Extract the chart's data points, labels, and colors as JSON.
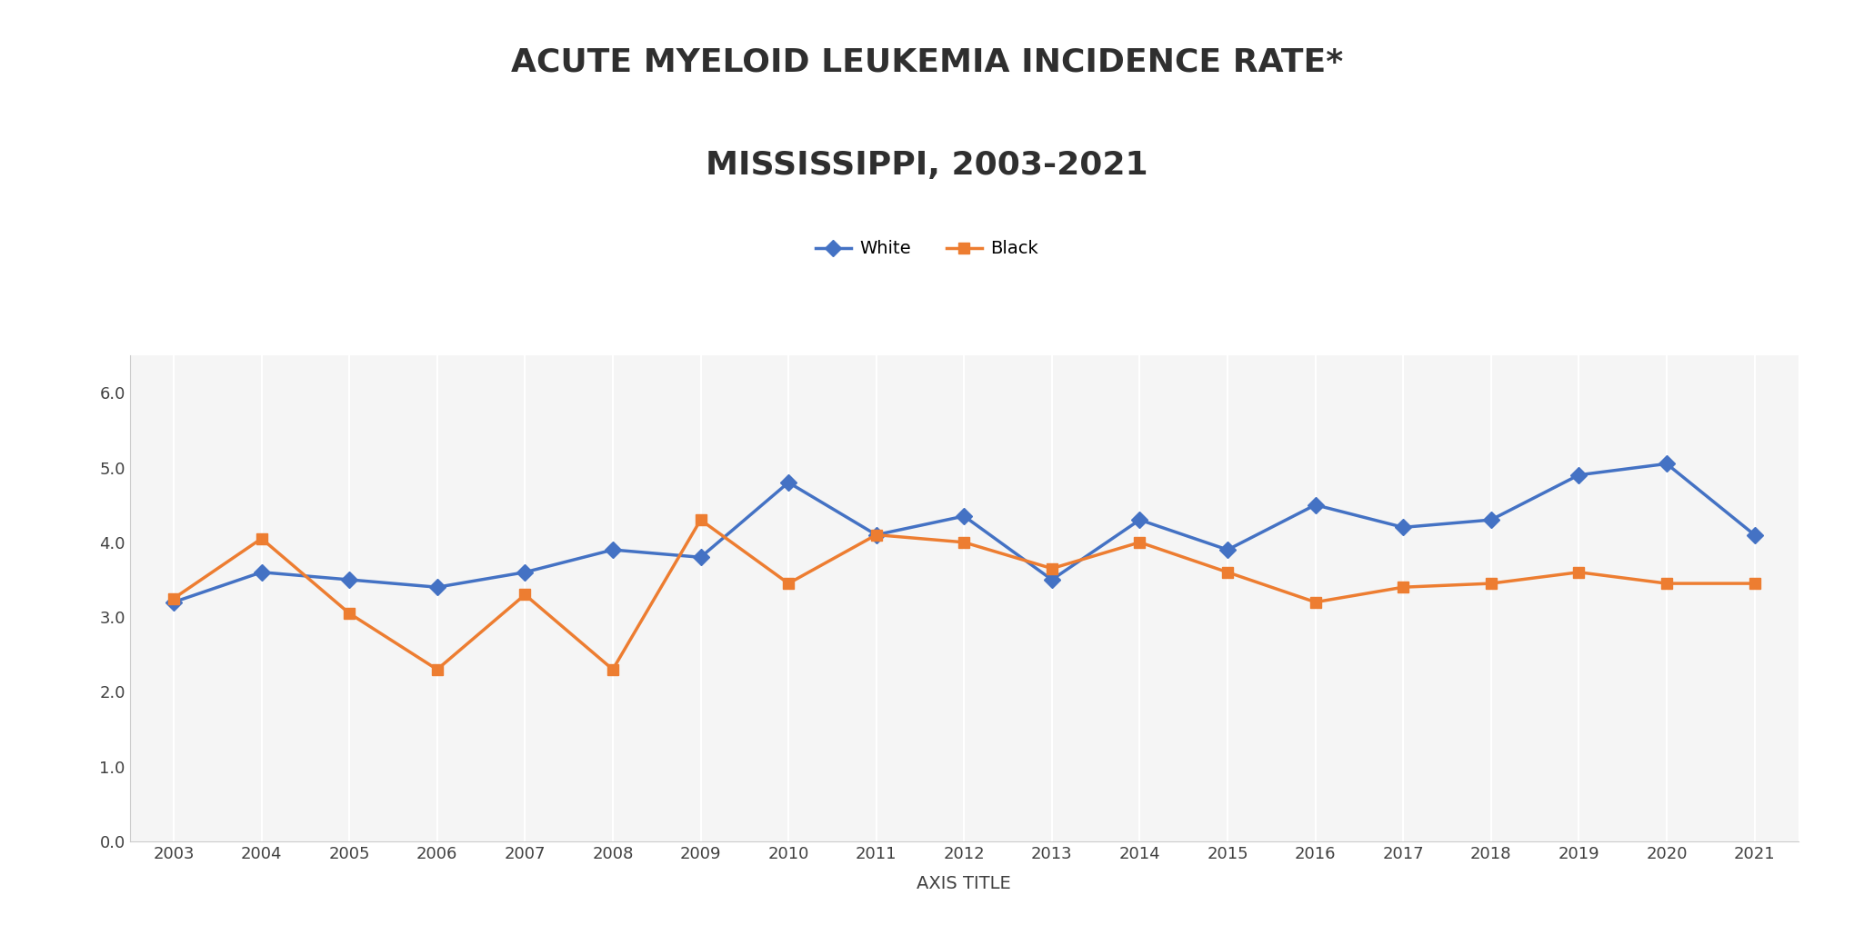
{
  "title_line1": "ACUTE MYELOID LEUKEMIA INCIDENCE RATE*",
  "title_line2": "MISSISSIPPI, 2003-2021",
  "xlabel": "AXIS TITLE",
  "years": [
    2003,
    2004,
    2005,
    2006,
    2007,
    2008,
    2009,
    2010,
    2011,
    2012,
    2013,
    2014,
    2015,
    2016,
    2017,
    2018,
    2019,
    2020,
    2021
  ],
  "white_values": [
    3.2,
    3.6,
    3.5,
    3.4,
    3.6,
    3.9,
    3.8,
    4.8,
    4.1,
    4.35,
    3.5,
    4.3,
    3.9,
    4.5,
    4.2,
    4.3,
    4.9,
    5.05,
    4.1
  ],
  "black_values": [
    3.25,
    4.05,
    3.05,
    2.3,
    3.3,
    2.3,
    4.3,
    3.45,
    4.1,
    4.0,
    3.65,
    4.0,
    3.6,
    3.2,
    3.4,
    3.45,
    3.6,
    3.45,
    3.45
  ],
  "white_color": "#4472C4",
  "black_color": "#ED7D31",
  "white_label": "White",
  "black_label": "Black",
  "ylim": [
    0.0,
    6.5
  ],
  "yticks": [
    0.0,
    1.0,
    2.0,
    3.0,
    4.0,
    5.0,
    6.0
  ],
  "ytick_labels": [
    "0.0",
    "1.0",
    "2.0",
    "3.0",
    "4.0",
    "5.0",
    "6.0"
  ],
  "background_color": "#ffffff",
  "plot_bg_color": "#f5f5f5",
  "grid_color": "#ffffff",
  "title_fontsize": 26,
  "axis_label_fontsize": 14,
  "tick_fontsize": 13,
  "legend_fontsize": 14,
  "marker_size": 9,
  "line_width": 2.5
}
